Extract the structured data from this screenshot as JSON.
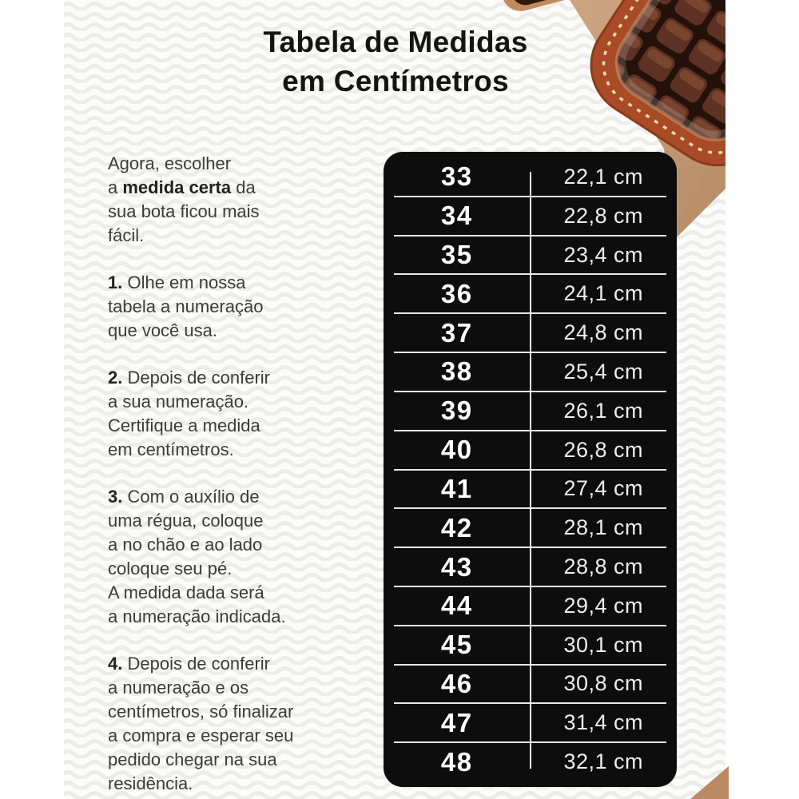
{
  "title": "Tabela de Medidas\nem Centímetros",
  "intro": {
    "pre": "Agora, escolher\na ",
    "bold": "medida certa",
    "post": " da\nsua bota ficou mais\nfácil."
  },
  "steps": [
    {
      "num": "1.",
      "text": " Olhe em nossa\ntabela a numeração\nque você usa."
    },
    {
      "num": "2.",
      "text": " Depois de conferir\na sua numeração.\nCertifique a medida\nem centímetros."
    },
    {
      "num": "3.",
      "text": " Com o auxílio de\numa régua, coloque\na no chão e ao lado\ncoloque seu pé.\nA medida dada será\na numeração indicada."
    },
    {
      "num": "4.",
      "text": " Depois de conferir\na numeração e os\ncentímetros, só finalizar\na compra e esperar seu\npedido chegar na sua\nresidência."
    }
  ],
  "size_table": {
    "columns": [
      "size",
      "length_cm"
    ],
    "rows": [
      {
        "size": "33",
        "length": "22,1 cm"
      },
      {
        "size": "34",
        "length": "22,8 cm"
      },
      {
        "size": "35",
        "length": "23,4 cm"
      },
      {
        "size": "36",
        "length": "24,1 cm"
      },
      {
        "size": "37",
        "length": "24,8 cm"
      },
      {
        "size": "38",
        "length": "25,4 cm"
      },
      {
        "size": "39",
        "length": "26,1 cm"
      },
      {
        "size": "40",
        "length": "26,8 cm"
      },
      {
        "size": "41",
        "length": "27,4 cm"
      },
      {
        "size": "42",
        "length": "28,1 cm"
      },
      {
        "size": "43",
        "length": "28,8 cm"
      },
      {
        "size": "44",
        "length": "29,4 cm"
      },
      {
        "size": "45",
        "length": "30,1 cm"
      },
      {
        "size": "46",
        "length": "30,8 cm"
      },
      {
        "size": "47",
        "length": "31,4 cm"
      },
      {
        "size": "48",
        "length": "32,1 cm"
      }
    ]
  },
  "colors": {
    "table_background": "#0d0d0d",
    "table_text": "#ffffff",
    "body_text": "#3b3b3b",
    "title_text": "#141414",
    "suede_leather": "#c49a76",
    "boot_border_leather": "#a94b26",
    "croc_scale": "#5d3123",
    "wave_pattern": "#ececea"
  },
  "decor": {
    "boot_photo": "crocodile-leather-boot-toe-photo",
    "background": "wavy-paper-texture"
  }
}
